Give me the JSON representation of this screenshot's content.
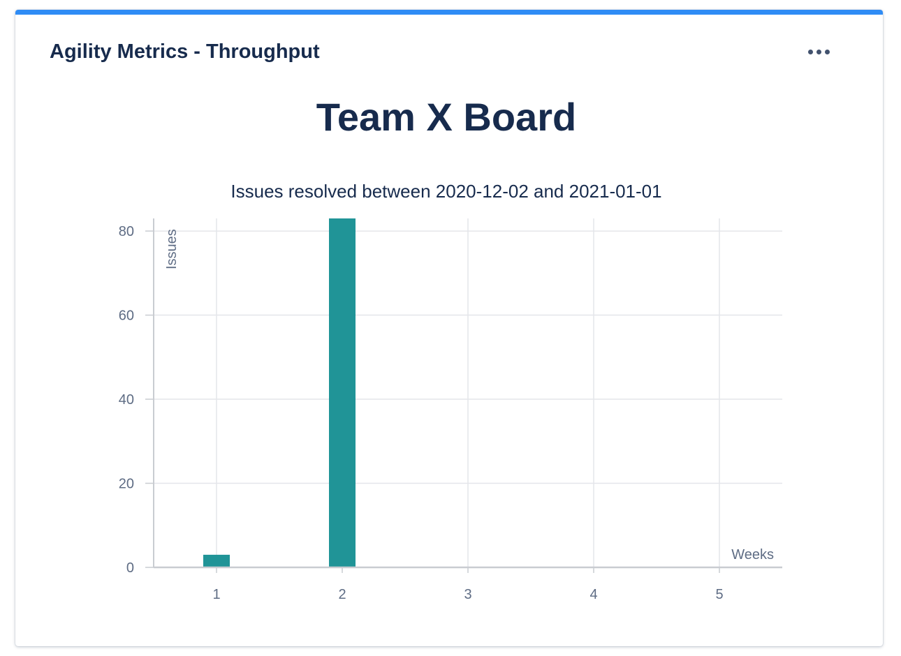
{
  "gadget": {
    "title": "Agility Metrics - Throughput",
    "more_icon": "ellipsis-icon",
    "board_title": "Team X Board",
    "accent_color": "#2f8cf5"
  },
  "chart_data": {
    "type": "bar",
    "title": "Issues resolved between 2020-12-02 and 2021-01-01",
    "xlabel": "Weeks",
    "ylabel": "Issues",
    "categories": [
      "1",
      "2",
      "3",
      "4",
      "5"
    ],
    "x": [
      1,
      2,
      3,
      4,
      5
    ],
    "values": [
      3,
      83,
      0,
      0,
      0
    ],
    "xlim": [
      0.5,
      5.5
    ],
    "ylim": [
      0,
      83
    ],
    "yticks": [
      0,
      20,
      40,
      60,
      80
    ],
    "grid": true,
    "bar_color": "#209497",
    "legend": "none"
  }
}
